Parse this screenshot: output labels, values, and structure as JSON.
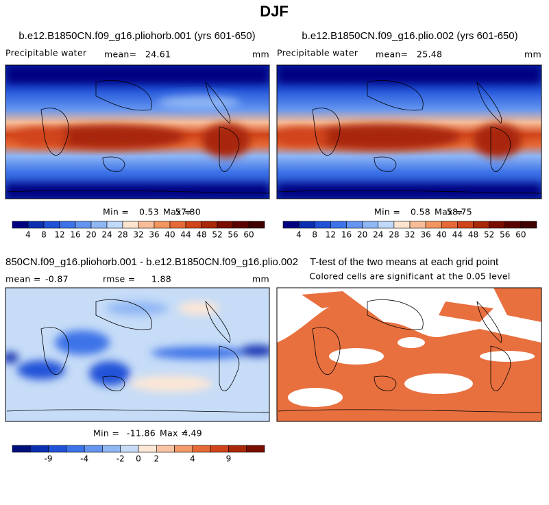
{
  "title": "DJF",
  "panels": [
    {
      "title": "b.e12.B1850CN.f09_g16.pliohorb.001 (yrs 601-650)",
      "variable": "Precipitable water",
      "mean_label": "mean=",
      "mean": "24.61",
      "units": "mm",
      "min_label": "Min =",
      "min": "0.53",
      "max_label": "Max =",
      "max": "57.80",
      "colorbar": {
        "labels": [
          "4",
          "8",
          "12",
          "16",
          "20",
          "24",
          "28",
          "32",
          "36",
          "40",
          "44",
          "48",
          "52",
          "56",
          "60"
        ],
        "colors": [
          "#000080",
          "#0a2fb0",
          "#2052d8",
          "#3d73e8",
          "#6495f0",
          "#8fb6f5",
          "#c0d8fa",
          "#fde4d0",
          "#f8bc96",
          "#f2955f",
          "#e66a36",
          "#d1441a",
          "#a82808",
          "#7a0c00",
          "#5a0000",
          "#400000"
        ]
      }
    },
    {
      "title": "b.e12.B1850CN.f09_g16.plio.002 (yrs 601-650)",
      "variable": "Precipitable water",
      "mean_label": "mean=",
      "mean": "25.48",
      "units": "mm",
      "min_label": "Min =",
      "min": "0.58",
      "max_label": "Max =",
      "max": "58.75",
      "colorbar": {
        "labels": [
          "4",
          "8",
          "12",
          "16",
          "20",
          "24",
          "28",
          "32",
          "36",
          "40",
          "44",
          "48",
          "52",
          "56",
          "60"
        ],
        "colors": [
          "#000080",
          "#0a2fb0",
          "#2052d8",
          "#3d73e8",
          "#6495f0",
          "#8fb6f5",
          "#c0d8fa",
          "#fde4d0",
          "#f8bc96",
          "#f2955f",
          "#e66a36",
          "#d1441a",
          "#a82808",
          "#7a0c00",
          "#5a0000",
          "#400000"
        ]
      }
    },
    {
      "title": "850CN.f09_g16.pliohorb.001 - b.e12.B1850CN.f09_g16.plio.002",
      "mean_label": "mean =",
      "mean": "-0.87",
      "rmse_label": "rmse =",
      "rmse": "1.88",
      "units": "mm",
      "min_label": "Min =",
      "min": "-11.86",
      "max_label": "Max =",
      "max": "4.49",
      "colorbar": {
        "labels": [
          "-9",
          "-4",
          "-2",
          "0",
          "2",
          "4",
          "9"
        ],
        "colors": [
          "#00107a",
          "#0a2fb0",
          "#2052d8",
          "#3d73e8",
          "#6495f0",
          "#8fb6f5",
          "#c6dcf7",
          "#fde7d6",
          "#f8c4a4",
          "#f29a6a",
          "#e66a36",
          "#d1441a",
          "#a82808",
          "#7a0c00"
        ]
      }
    },
    {
      "title": "T-test of the two means at each grid point",
      "subtitle": "Colored cells are significant at the 0.05 level"
    }
  ]
}
